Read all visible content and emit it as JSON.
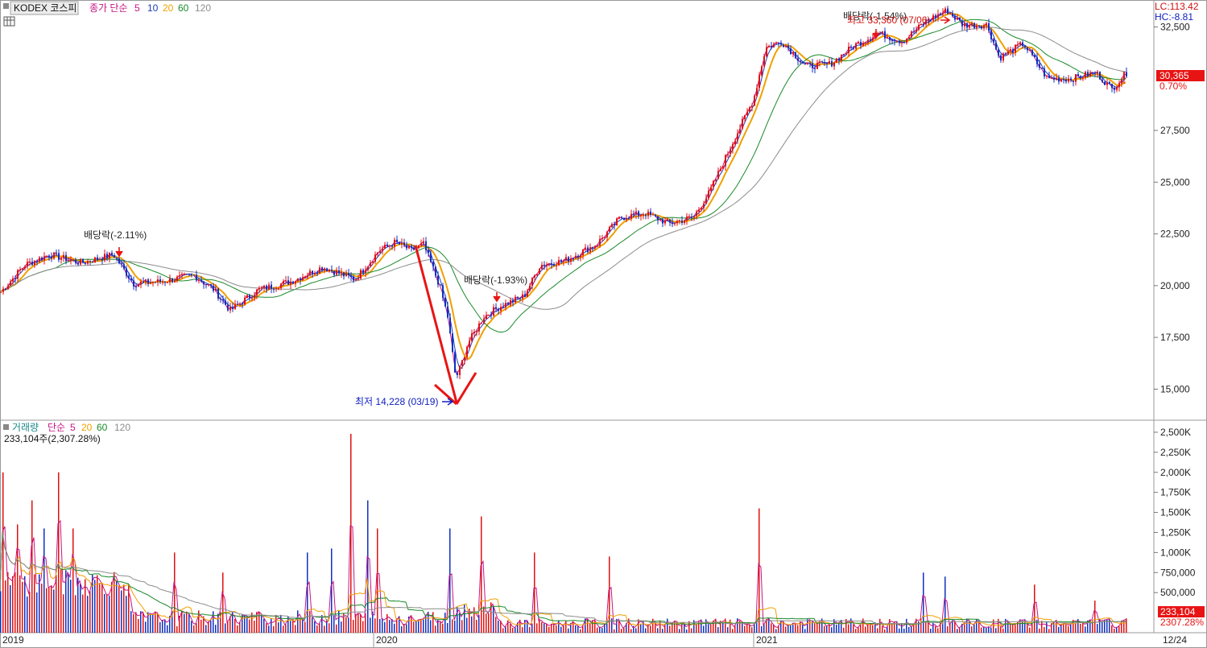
{
  "chart_data": [
    {
      "type": "candlestick",
      "instrument": "KODEX 코스피",
      "ma_label": "종가 단순",
      "ma_periods": [
        "5",
        "10",
        "20",
        "60",
        "120"
      ],
      "ma_colors": [
        "#c71585",
        "#1e3cb4",
        "#f0a000",
        "#1a8a2a",
        "#8c8c8c"
      ],
      "yticks": [
        "32,500",
        "27,500",
        "25,000",
        "22,500",
        "20,000",
        "17,500",
        "15,000"
      ],
      "ytick_values": [
        32500,
        27500,
        25000,
        22500,
        20000,
        17500,
        15000
      ],
      "ylim": [
        13500,
        33800
      ],
      "xticks": [
        "2019",
        "2020",
        "2021",
        "12/24"
      ],
      "lc": "LC:113.42",
      "hc": "HC:-8.81",
      "last_price": "30,365",
      "last_change": "0.70%",
      "annotations": {
        "div1": "배당락(-2.11%)",
        "div2": "배당락(-1.93%)",
        "div3": "배당락(-1.54%)",
        "high": "최고 33,360 (07/06)",
        "low": "최저 14,228 (03/19)"
      },
      "close_path_points": [
        [
          0,
          19700
        ],
        [
          30,
          21000
        ],
        [
          60,
          21500
        ],
        [
          100,
          21100
        ],
        [
          140,
          21500
        ],
        [
          165,
          20100
        ],
        [
          200,
          20200
        ],
        [
          240,
          20500
        ],
        [
          265,
          19800
        ],
        [
          285,
          18800
        ],
        [
          320,
          19800
        ],
        [
          360,
          20200
        ],
        [
          400,
          20900
        ],
        [
          440,
          20300
        ],
        [
          470,
          21700
        ],
        [
          490,
          22100
        ],
        [
          510,
          21700
        ],
        [
          525,
          22000
        ],
        [
          545,
          20000
        ],
        [
          555,
          18500
        ],
        [
          565,
          15500
        ],
        [
          572,
          16200
        ],
        [
          580,
          17200
        ],
        [
          600,
          18500
        ],
        [
          620,
          19000
        ],
        [
          650,
          19500
        ],
        [
          670,
          21000
        ],
        [
          700,
          21200
        ],
        [
          740,
          22000
        ],
        [
          770,
          23300
        ],
        [
          800,
          23500
        ],
        [
          830,
          23000
        ],
        [
          860,
          23300
        ],
        [
          880,
          24500
        ],
        [
          910,
          27000
        ],
        [
          935,
          29000
        ],
        [
          950,
          31500
        ],
        [
          970,
          31800
        ],
        [
          1000,
          30600
        ],
        [
          1030,
          30700
        ],
        [
          1060,
          31600
        ],
        [
          1090,
          32200
        ],
        [
          1120,
          31800
        ],
        [
          1150,
          32800
        ],
        [
          1175,
          33300
        ],
        [
          1195,
          32600
        ],
        [
          1225,
          32600
        ],
        [
          1240,
          31000
        ],
        [
          1270,
          31700
        ],
        [
          1300,
          30000
        ],
        [
          1330,
          30000
        ],
        [
          1360,
          30300
        ],
        [
          1380,
          29500
        ],
        [
          1400,
          30365
        ]
      ]
    },
    {
      "type": "bar",
      "title": "거래량",
      "ma_label": "단순",
      "ma_periods": [
        "5",
        "20",
        "60",
        "120"
      ],
      "info": "233,104주(2,307.28%)",
      "yticks": [
        "2,500K",
        "2,250K",
        "2,000K",
        "1,750K",
        "1,500K",
        "1,250K",
        "1,000K",
        "750,000",
        "500,000"
      ],
      "ytick_values": [
        2500,
        2250,
        2000,
        1750,
        1500,
        1250,
        1000,
        750,
        500
      ],
      "ylim": [
        0,
        2650
      ],
      "last_volume": "233,104",
      "last_ratio": "2307.28%",
      "spikes": [
        [
          2,
          2000
        ],
        [
          20,
          1350
        ],
        [
          40,
          1650
        ],
        [
          55,
          1300
        ],
        [
          73,
          2000
        ],
        [
          90,
          1300
        ],
        [
          215,
          1000
        ],
        [
          275,
          750
        ],
        [
          380,
          1000
        ],
        [
          410,
          1050
        ],
        [
          436,
          2480
        ],
        [
          455,
          1650
        ],
        [
          468,
          1300
        ],
        [
          558,
          1300
        ],
        [
          597,
          1450
        ],
        [
          663,
          1000
        ],
        [
          755,
          950
        ],
        [
          942,
          1550
        ],
        [
          1147,
          750
        ],
        [
          1172,
          700
        ],
        [
          1283,
          600
        ],
        [
          1360,
          400
        ]
      ]
    }
  ]
}
